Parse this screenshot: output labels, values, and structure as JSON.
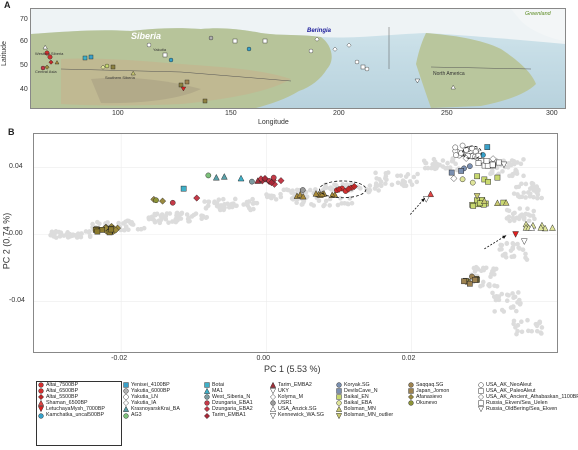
{
  "panels": {
    "a_label": "A",
    "b_label": "B"
  },
  "map": {
    "xlabel": "Longitude",
    "ylabel": "Latitude",
    "xticks": [
      "100",
      "150",
      "200",
      "250",
      "300"
    ],
    "yticks": [
      "70",
      "60",
      "50",
      "40"
    ],
    "place_labels": [
      "Siberia",
      "Beringia",
      "Greenland",
      "Western Siberia",
      "Central Asia",
      "Southern Siberia",
      "Yakutia",
      "North America"
    ]
  },
  "chart_data": {
    "type": "scatter",
    "xlabel": "PC 1 (5.53 %)",
    "ylabel": "PC 2 (0.74 %)",
    "xlim": [
      -0.032,
      0.04
    ],
    "ylim": [
      -0.07,
      0.06
    ],
    "xticks": [
      "-0.02",
      "0.00",
      "0.02"
    ],
    "yticks": [
      "0.04",
      "0.00",
      "-0.04"
    ],
    "xtick_values": [
      -0.02,
      0.0,
      0.02
    ],
    "ytick_values": [
      0.04,
      0.0,
      -0.04
    ],
    "groups": [
      {
        "name": "Altai_7500BP",
        "color": "#d33030",
        "shape": "circle",
        "points": [
          [
            0.0104,
            0.0275
          ],
          [
            0.0117,
            0.0279
          ]
        ]
      },
      {
        "name": "Altai_6500BP",
        "color": "#d33030",
        "shape": "circle",
        "points": [
          [
            0.0109,
            0.026
          ],
          [
            0.0097,
            0.0265
          ]
        ]
      },
      {
        "name": "Altai_5500BP",
        "color": "#c02828",
        "shape": "diamond",
        "points": [
          [
            0.01,
            0.027
          ],
          [
            0.0113,
            0.0272
          ],
          [
            0.0121,
            0.0287
          ]
        ]
      },
      {
        "name": "Shaman_6500BP",
        "color": "#e04545",
        "shape": "triangle",
        "points": [
          [
            0.0226,
            0.0241
          ]
        ]
      },
      {
        "name": "LetuchayaMysh_7000BP",
        "color": "#e02020",
        "shape": "tri-down",
        "points": [
          [
            0.0343,
            0.0003
          ]
        ]
      },
      {
        "name": "Kamchatka_uncal500BP",
        "color": "#36a0c9",
        "shape": "circle",
        "points": [
          [
            0.0298,
            0.0475
          ]
        ]
      },
      {
        "name": "Yenisei_4100BP",
        "color": "#3aa0c8",
        "shape": "square",
        "points": [
          [
            0.0304,
            0.0522
          ]
        ]
      },
      {
        "name": "Yakutia_6000BP",
        "color": "#b0b0b0",
        "shape": "circle",
        "points": [
          [
            0.0278,
            0.051
          ],
          [
            0.027,
            0.0482
          ]
        ]
      },
      {
        "name": "Yakutia_LN",
        "color": "#ffffff",
        "shape": "circle",
        "points": [
          [
            0.026,
            0.052
          ],
          [
            0.027,
            0.0531
          ],
          [
            0.0283,
            0.0514
          ],
          [
            0.0288,
            0.0495
          ]
        ]
      },
      {
        "name": "Yakutia_IA",
        "color": "#ffffff",
        "shape": "diamond",
        "points": [
          [
            0.0275,
            0.0455
          ],
          [
            0.029,
            0.046
          ]
        ]
      },
      {
        "name": "KrasnoyarskKrai_BA",
        "color": "#5aa0a8",
        "shape": "triangle",
        "points": [
          [
            -0.0058,
            0.0345
          ],
          [
            -0.0069,
            0.034
          ]
        ]
      },
      {
        "name": "AG3",
        "color": "#7cc07a",
        "shape": "circle",
        "points": [
          [
            -0.008,
            0.0353
          ]
        ]
      },
      {
        "name": "Botai",
        "color": "#3fb0c8",
        "shape": "square",
        "points": [
          [
            -0.0114,
            0.0274
          ]
        ]
      },
      {
        "name": "MA1",
        "color": "#3fb0c8",
        "shape": "triangle",
        "points": [
          [
            -0.0035,
            0.0335
          ]
        ]
      },
      {
        "name": "West_Siberia_N",
        "color": "#7c9a9f",
        "shape": "circle",
        "points": [
          [
            -0.002,
            0.0316
          ]
        ]
      },
      {
        "name": "Dzungaria_EBA1",
        "color": "#c43a48",
        "shape": "circle",
        "points": [
          [
            -0.0129,
            0.019
          ],
          [
            0.0004,
            0.032
          ],
          [
            0.001,
            0.034
          ]
        ]
      },
      {
        "name": "Dzungaria_EBA2",
        "color": "#c43a48",
        "shape": "diamond",
        "points": [
          [
            -0.0096,
            0.0218
          ],
          [
            0.0011,
            0.03
          ],
          [
            0.002,
            0.0322
          ]
        ]
      },
      {
        "name": "Tarim_EMBA1",
        "color": "#a82838",
        "shape": "diamond",
        "points": [
          [
            -0.0002,
            0.0335
          ],
          [
            0.0007,
            0.031
          ]
        ]
      },
      {
        "name": "Tarim_EMBA2",
        "color": "#a0303a",
        "shape": "triangle",
        "points": [
          [
            -0.0012,
            0.032
          ]
        ]
      },
      {
        "name": "UKY",
        "color": "#ffffff",
        "shape": "tri-down",
        "points": [
          [
            0.022,
            0.0212
          ]
        ]
      },
      {
        "name": "Kolyma_M",
        "color": "#ffffff",
        "shape": "diamond",
        "points": [
          [
            0.0258,
            0.0335
          ]
        ]
      },
      {
        "name": "USR1",
        "color": "#9a9a9a",
        "shape": "circle",
        "points": [
          [
            0.005,
            0.0266
          ]
        ]
      },
      {
        "name": "USA_Anzick.SG",
        "color": "#ffffff",
        "shape": "triangle",
        "points": [
          [
            0.0365,
            0.004
          ]
        ]
      },
      {
        "name": "Kennewick_WA.SG",
        "color": "#ffffff",
        "shape": "tri-down",
        "points": [
          [
            0.0355,
            -0.004
          ]
        ]
      },
      {
        "name": "Koryak.SG",
        "color": "#7a8fb0",
        "shape": "circle",
        "points": [
          [
            0.0272,
            0.0395
          ],
          [
            0.028,
            0.0408
          ]
        ]
      },
      {
        "name": "DevilsCave_N",
        "color": "#7a8fb0",
        "shape": "square",
        "points": [
          [
            0.0255,
            0.037
          ],
          [
            0.0268,
            0.038
          ]
        ]
      },
      {
        "name": "Baikal_EN",
        "color": "#c8d870",
        "shape": "square",
        "points": [
          [
            0.029,
            0.0348
          ],
          [
            0.03,
            0.0329
          ],
          [
            0.0318,
            0.034
          ],
          [
            0.0305,
            0.0315
          ]
        ]
      },
      {
        "name": "Baikal_EBA",
        "color": "#dfe49a",
        "shape": "circle",
        "points": [
          [
            0.027,
            0.033
          ],
          [
            0.0284,
            0.031
          ]
        ]
      },
      {
        "name": "Bolsman_MN",
        "color": "#c8c870",
        "shape": "triangle",
        "points": [
          [
            0.03,
            0.02
          ],
          [
            0.0318,
            0.0188
          ],
          [
            0.033,
            0.019
          ]
        ]
      },
      {
        "name": "Bolsman_MN_outlier",
        "color": "#c8c870",
        "shape": "tri-down",
        "points": [
          [
            0.029,
            0.023
          ]
        ]
      },
      {
        "name": "Saqqaq.SG",
        "color": "#9d8250",
        "shape": "circle",
        "points": [
          [
            0.0283,
            -0.025
          ]
        ]
      },
      {
        "name": "Japan_Jomon",
        "color": "#9d8250",
        "shape": "square",
        "points": [
          [
            0.0272,
            -0.0278
          ],
          [
            0.028,
            -0.0293
          ],
          [
            0.0287,
            -0.027
          ]
        ]
      },
      {
        "name": "Afanasievo",
        "color": "#9a8a40",
        "shape": "diamond",
        "points": [
          [
            -0.0155,
            0.021
          ],
          [
            -0.0143,
            0.02
          ]
        ]
      },
      {
        "name": "Okunevo",
        "color": "#8d9438",
        "shape": "circle",
        "points": [
          [
            -0.0152,
            0.0205
          ]
        ]
      },
      {
        "name": "USA_AK_NeoAleut",
        "color": "#ffffff",
        "shape": "circle",
        "points": [
          [
            0.0268,
            0.0485
          ],
          [
            0.0275,
            0.0505
          ]
        ]
      },
      {
        "name": "USA_AK_PaleoAleut",
        "color": "#ffffff",
        "shape": "square",
        "points": [
          [
            0.0292,
            0.047
          ],
          [
            0.0303,
            0.044
          ]
        ]
      },
      {
        "name": "USA_AK_Ancient_Athabaskan_1100BP",
        "color": "#ffffff",
        "shape": "diamond",
        "points": [
          [
            0.0312,
            0.0452
          ]
        ]
      },
      {
        "name": "Russia_Ekven/Sea_Uelen",
        "color": "#ffffff",
        "shape": "square",
        "points": [
          [
            0.032,
            0.043
          ]
        ]
      },
      {
        "name": "Russia_OldBering/Sea_Ekven",
        "color": "#ffffff",
        "shape": "tri-down",
        "points": [
          [
            0.0327,
            0.0418
          ]
        ]
      }
    ],
    "clusters": [
      {
        "color": "#9c8a3c",
        "shape": "diamond",
        "cx": -0.022,
        "cy": 0.0035,
        "n": 10,
        "sx": 0.0016,
        "sy": 0.0016
      },
      {
        "color": "#8b7a2e",
        "shape": "square",
        "cx": -0.0222,
        "cy": 0.0025,
        "n": 8,
        "sx": 0.0014,
        "sy": 0.0012
      },
      {
        "color": "#a88a3a",
        "shape": "triangle",
        "cx": 0.0065,
        "cy": 0.0235,
        "n": 10,
        "sx": 0.003,
        "sy": 0.001
      },
      {
        "color": "#c43a48",
        "shape": "diamond",
        "cx": 0.0002,
        "cy": 0.0325,
        "n": 6,
        "sx": 0.001,
        "sy": 0.0012
      },
      {
        "color": "#c8d870",
        "shape": "square",
        "cx": 0.0305,
        "cy": 0.019,
        "n": 10,
        "sx": 0.0022,
        "sy": 0.002
      },
      {
        "color": "#dfe49a",
        "shape": "triangle",
        "cx": 0.0375,
        "cy": 0.005,
        "n": 9,
        "sx": 0.002,
        "sy": 0.0015
      },
      {
        "color": "#8d8140",
        "shape": "square",
        "cx": 0.0282,
        "cy": -0.0275,
        "n": 5,
        "sx": 0.0008,
        "sy": 0.0012
      },
      {
        "color": "#ffffff",
        "shape": "circle",
        "cx": 0.0275,
        "cy": 0.0485,
        "n": 10,
        "sx": 0.0015,
        "sy": 0.002
      },
      {
        "color": "#ffffff",
        "shape": "square",
        "cx": 0.0305,
        "cy": 0.042,
        "n": 8,
        "sx": 0.0015,
        "sy": 0.002
      }
    ],
    "annotations": {
      "ellipses": [
        {
          "cx": 0.0105,
          "cy": 0.027,
          "rx": 0.0032,
          "ry": 0.005
        },
        {
          "cx": 0.0283,
          "cy": 0.049,
          "rx": 0.0013,
          "ry": 0.0038
        }
      ],
      "arrows": [
        {
          "from": [
            0.0198,
            0.012
          ],
          "to": [
            0.0218,
            0.0218
          ]
        },
        {
          "from": [
            0.03,
            -0.0085
          ],
          "to": [
            0.033,
            -0.0005
          ]
        }
      ]
    }
  },
  "legend": {
    "columns": [
      [
        "Altai_7500BP",
        "Altai_6500BP",
        "Altai_5500BP",
        "Shaman_6500BP",
        "LetuchayaMysh_7000BP",
        "Kamchatka_uncal500BP"
      ],
      [
        "Yenisei_4100BP",
        "Yakutia_6000BP",
        "Yakutia_LN",
        "Yakutia_IA",
        "KrasnoyarskKrai_BA",
        "AG3"
      ],
      [
        "Botai",
        "MA1",
        "West_Siberia_N",
        "Dzungaria_EBA1",
        "Dzungaria_EBA2",
        "Tarim_EMBA1"
      ],
      [
        "Tarim_EMBA2",
        "UKY",
        "Kolyma_M",
        "USR1",
        "USA_Anzick.SG",
        "Kennewick_WA.SG"
      ],
      [
        "Koryak.SG",
        "DevilsCave_N",
        "Baikal_EN",
        "Baikal_EBA",
        "Bolsman_MN",
        "Bolsman_MN_outlier"
      ],
      [
        "Saqqaq.SG",
        "Japan_Jomon",
        "Afanasievo",
        "Okunevo"
      ],
      [
        "USA_AK_NeoAleut",
        "USA_AK_PaleoAleut",
        "USA_AK_Ancient_Athabaskan_1100BP",
        "Russia_Ekven/Sea_Uelen",
        "Russia_OldBering/Sea_Ekven"
      ]
    ]
  }
}
